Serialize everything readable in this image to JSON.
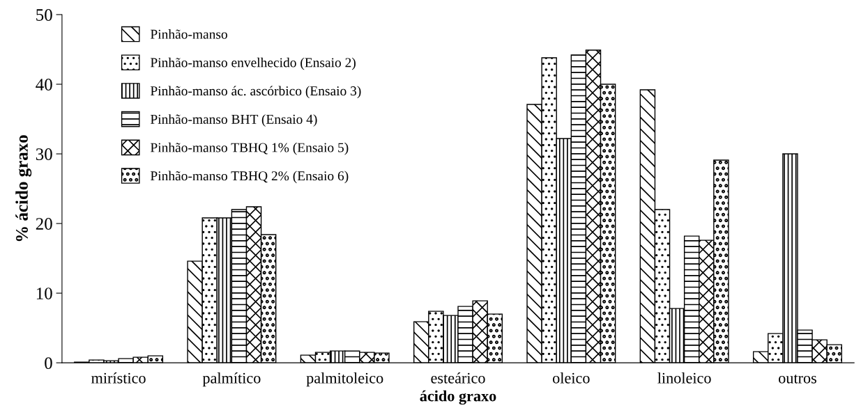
{
  "chart_data": {
    "type": "bar",
    "xlabel": "ácido graxo",
    "ylabel": "% ácido graxo",
    "categories": [
      "mirístico",
      "palmítico",
      "palmitoleico",
      "esteárico",
      "oleico",
      "linoleico",
      "outros"
    ],
    "series": [
      {
        "name": "Pinhão-manso",
        "color": "#000000",
        "values": [
          0.1,
          14.6,
          1.1,
          5.9,
          37.1,
          39.2,
          1.6
        ]
      },
      {
        "name": "Pinhão-manso envelhecido (Ensaio 2)",
        "color": "#000000",
        "values": [
          0.4,
          20.8,
          1.5,
          7.4,
          43.8,
          22.0,
          4.2
        ]
      },
      {
        "name": "Pinhão-manso ác. ascórbico (Ensaio 3)",
        "color": "#000000",
        "values": [
          0.3,
          20.8,
          1.7,
          6.8,
          32.2,
          7.8,
          30.0
        ]
      },
      {
        "name": "Pinhão-manso BHT (Ensaio 4)",
        "color": "#000000",
        "values": [
          0.6,
          22.0,
          1.7,
          8.1,
          44.2,
          18.2,
          4.7
        ]
      },
      {
        "name": "Pinhão-manso TBHQ 1% (Ensaio 5)",
        "color": "#000000",
        "values": [
          0.8,
          22.4,
          1.5,
          8.9,
          44.9,
          17.6,
          3.3
        ]
      },
      {
        "name": "Pinhão-manso TBHQ 2% (Ensaio 6)",
        "color": "#000000",
        "values": [
          1.0,
          18.4,
          1.4,
          7.0,
          40.0,
          29.1,
          2.6
        ]
      }
    ],
    "ylim": [
      0,
      50
    ],
    "yticks": [
      0,
      10,
      20,
      30,
      40,
      50
    ],
    "grid": false,
    "legend": "top left"
  }
}
